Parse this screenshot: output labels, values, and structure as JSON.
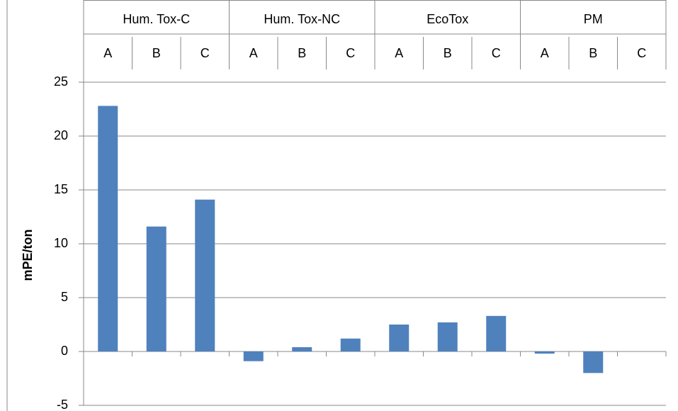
{
  "chart_data": {
    "type": "bar",
    "ylabel": "mPE/ton",
    "groups": [
      "Hum. Tox-C",
      "Hum. Tox-NC",
      "EcoTox",
      "PM"
    ],
    "categories": [
      "A",
      "B",
      "C",
      "A",
      "B",
      "C",
      "A",
      "B",
      "C",
      "A",
      "B",
      "C"
    ],
    "values": [
      22.8,
      11.6,
      14.1,
      -0.9,
      0.4,
      1.2,
      2.5,
      2.7,
      3.3,
      -0.2,
      -2.0,
      0
    ],
    "color": "#4f81bd",
    "ylim": [
      -5,
      25
    ],
    "yticks": [
      -5,
      0,
      5,
      10,
      15,
      20,
      25
    ],
    "grid": true
  }
}
